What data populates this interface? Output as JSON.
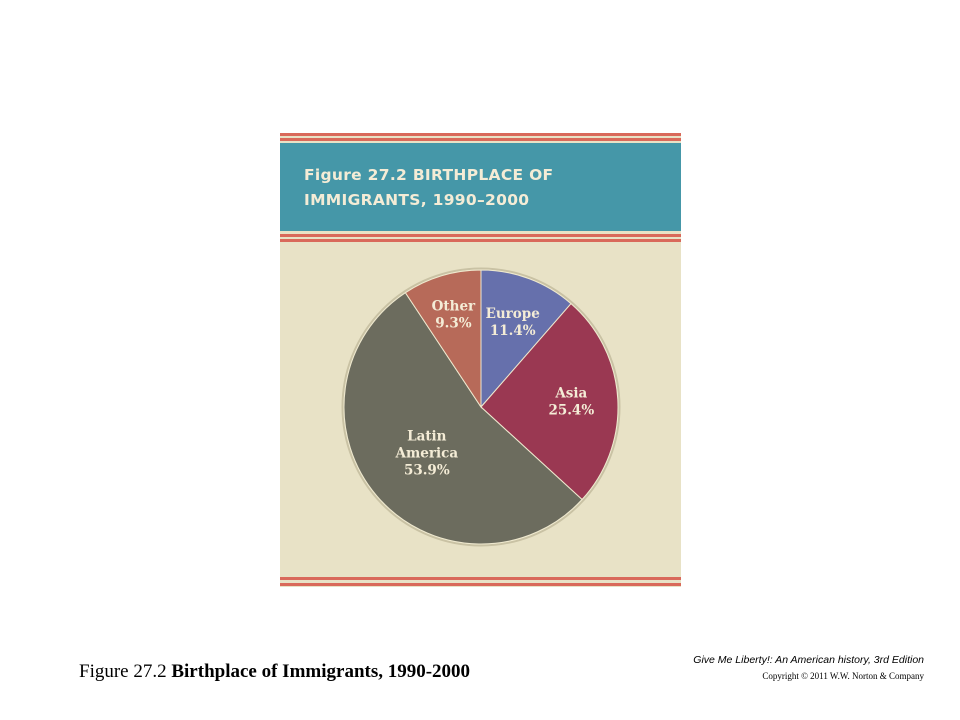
{
  "figure": {
    "title_line1": "Figure 27.2  BIRTHPLACE OF",
    "title_line2": "IMMIGRANTS, 1990–2000",
    "colors": {
      "header": "#4597a8",
      "background": "#e8e2c6",
      "stripe": "#d9695a",
      "title_text": "#f4ecd6"
    }
  },
  "chart_data": {
    "type": "pie",
    "title": "Figure 27.2  BIRTHPLACE OF IMMIGRANTS, 1990–2000",
    "slices": [
      {
        "label_lines": [
          "Europe"
        ],
        "value": 11.4,
        "value_label": "11.4%",
        "color": "#6670ac"
      },
      {
        "label_lines": [
          "Asia"
        ],
        "value": 25.4,
        "value_label": "25.4%",
        "color": "#9a3852"
      },
      {
        "label_lines": [
          "Latin",
          "America"
        ],
        "value": 53.9,
        "value_label": "53.9%",
        "color": "#6c6c5e"
      },
      {
        "label_lines": [
          "Other"
        ],
        "value": 9.3,
        "value_label": "9.3%",
        "color": "#b76a59"
      }
    ],
    "start": "12 o'clock",
    "direction": "clockwise"
  },
  "caption": {
    "prefix": "Figure 27.2 ",
    "bold": "Birthplace of Immigrants, 1990-2000"
  },
  "source": {
    "book": "Give Me Liberty!: An American history, 3rd Edition",
    "copyright": "Copyright © 2011 W.W. Norton & Company"
  }
}
